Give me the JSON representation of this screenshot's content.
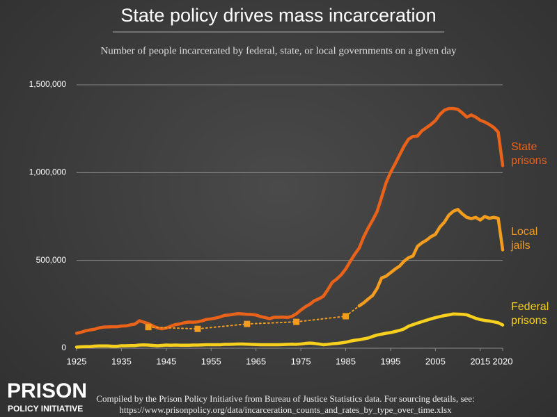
{
  "chart_data": {
    "type": "line",
    "title": "State policy drives mass incarceration",
    "subtitle": "Number of people incarcerated by federal, state, or local governments on a given day",
    "x": [
      1925,
      1926,
      1927,
      1928,
      1929,
      1930,
      1931,
      1932,
      1933,
      1934,
      1935,
      1936,
      1937,
      1938,
      1939,
      1940,
      1941,
      1942,
      1943,
      1944,
      1945,
      1946,
      1947,
      1948,
      1949,
      1950,
      1951,
      1952,
      1953,
      1954,
      1955,
      1956,
      1957,
      1958,
      1959,
      1960,
      1961,
      1962,
      1963,
      1964,
      1965,
      1966,
      1967,
      1968,
      1969,
      1970,
      1971,
      1972,
      1973,
      1974,
      1975,
      1976,
      1977,
      1978,
      1979,
      1980,
      1981,
      1982,
      1983,
      1984,
      1985,
      1986,
      1987,
      1988,
      1989,
      1990,
      1991,
      1992,
      1993,
      1994,
      1995,
      1996,
      1997,
      1998,
      1999,
      2000,
      2001,
      2002,
      2003,
      2004,
      2005,
      2006,
      2007,
      2008,
      2009,
      2010,
      2011,
      2012,
      2013,
      2014,
      2015,
      2016,
      2017,
      2018,
      2019,
      2020
    ],
    "series": [
      {
        "name": "State prisons",
        "color": "#e8621a",
        "values": [
          85000,
          91000,
          99000,
          104000,
          108000,
          116000,
          120000,
          121000,
          122000,
          122000,
          126000,
          127000,
          133000,
          137000,
          156000,
          148000,
          140000,
          127000,
          116000,
          110000,
          115000,
          125000,
          134000,
          138000,
          145000,
          149000,
          148000,
          150000,
          156000,
          164000,
          167000,
          172000,
          178000,
          187000,
          189000,
          193000,
          197000,
          195000,
          193000,
          192000,
          189000,
          180000,
          175000,
          168000,
          176000,
          176000,
          177000,
          175000,
          181000,
          196000,
          217000,
          236000,
          250000,
          270000,
          281000,
          295000,
          333000,
          375000,
          394000,
          418000,
          451000,
          494000,
          534000,
          570000,
          633000,
          684000,
          729000,
          778000,
          859000,
          942000,
          1001000,
          1049000,
          1100000,
          1150000,
          1190000,
          1206000,
          1208000,
          1238000,
          1256000,
          1274000,
          1296000,
          1331000,
          1355000,
          1365000,
          1365000,
          1360000,
          1340000,
          1316000,
          1328000,
          1316000,
          1298000,
          1288000,
          1274000,
          1257000,
          1230000,
          1040000
        ]
      },
      {
        "name": "Local jails",
        "color": "#f39c1e",
        "values": [
          null,
          null,
          null,
          null,
          null,
          null,
          null,
          null,
          null,
          null,
          null,
          null,
          null,
          null,
          null,
          null,
          120000,
          null,
          null,
          null,
          null,
          null,
          null,
          null,
          null,
          null,
          null,
          110000,
          null,
          null,
          null,
          null,
          null,
          null,
          null,
          null,
          null,
          null,
          138000,
          null,
          null,
          null,
          null,
          null,
          null,
          null,
          null,
          null,
          null,
          150000,
          null,
          null,
          null,
          null,
          null,
          null,
          null,
          null,
          null,
          null,
          182000,
          null,
          null,
          241000,
          258000,
          280000,
          300000,
          340000,
          400000,
          410000,
          430000,
          450000,
          467000,
          495000,
          515000,
          525000,
          580000,
          600000,
          615000,
          635000,
          648000,
          690000,
          718000,
          758000,
          780000,
          790000,
          765000,
          745000,
          738000,
          745000,
          730000,
          750000,
          740000,
          745000,
          740000,
          560000
        ]
      },
      {
        "name": "Federal prisons",
        "color": "#f7cf1d",
        "values": [
          6000,
          8000,
          9000,
          9000,
          12000,
          13000,
          13000,
          13000,
          11000,
          11000,
          14000,
          14000,
          15000,
          15000,
          18000,
          19000,
          18000,
          16000,
          14000,
          16000,
          18000,
          17000,
          18000,
          17000,
          17000,
          17000,
          18000,
          18000,
          19000,
          20000,
          20000,
          20000,
          20000,
          22000,
          22000,
          23000,
          24000,
          24000,
          23000,
          22000,
          21000,
          20000,
          20000,
          20000,
          20000,
          20000,
          21000,
          22000,
          23000,
          22000,
          24000,
          27000,
          29000,
          27000,
          24000,
          20000,
          22000,
          25000,
          27000,
          30000,
          34000,
          40000,
          45000,
          48000,
          53000,
          58000,
          67000,
          75000,
          80000,
          85000,
          89000,
          95000,
          101000,
          110000,
          125000,
          134000,
          143000,
          151000,
          159000,
          167000,
          174000,
          180000,
          186000,
          190000,
          195000,
          194000,
          193000,
          190000,
          180000,
          170000,
          163000,
          158000,
          155000,
          150000,
          145000,
          132000
        ]
      }
    ],
    "xlim": [
      1925,
      2020
    ],
    "xticks": [
      1925,
      1935,
      1945,
      1955,
      1965,
      1975,
      1985,
      1995,
      2005,
      2015,
      2020
    ],
    "ylim": [
      0,
      1500000
    ],
    "yticks": [
      0,
      {
        "value": 500000,
        "label": "500,000"
      },
      {
        "value": 1000000,
        "label": "1,000,000"
      },
      {
        "value": 1500000,
        "label": "1,500,000"
      }
    ],
    "grid": true,
    "source": [
      "Compiled by the Prison Policy Initiative from Bureau of Justice Statistics data. For sourcing details, see:",
      "https://www.prisonpolicy.org/data/incarceration_counts_and_rates_by_type_over_time.xlsx"
    ],
    "logo": [
      "PRISON",
      "POLICY INITIATIVE"
    ]
  }
}
